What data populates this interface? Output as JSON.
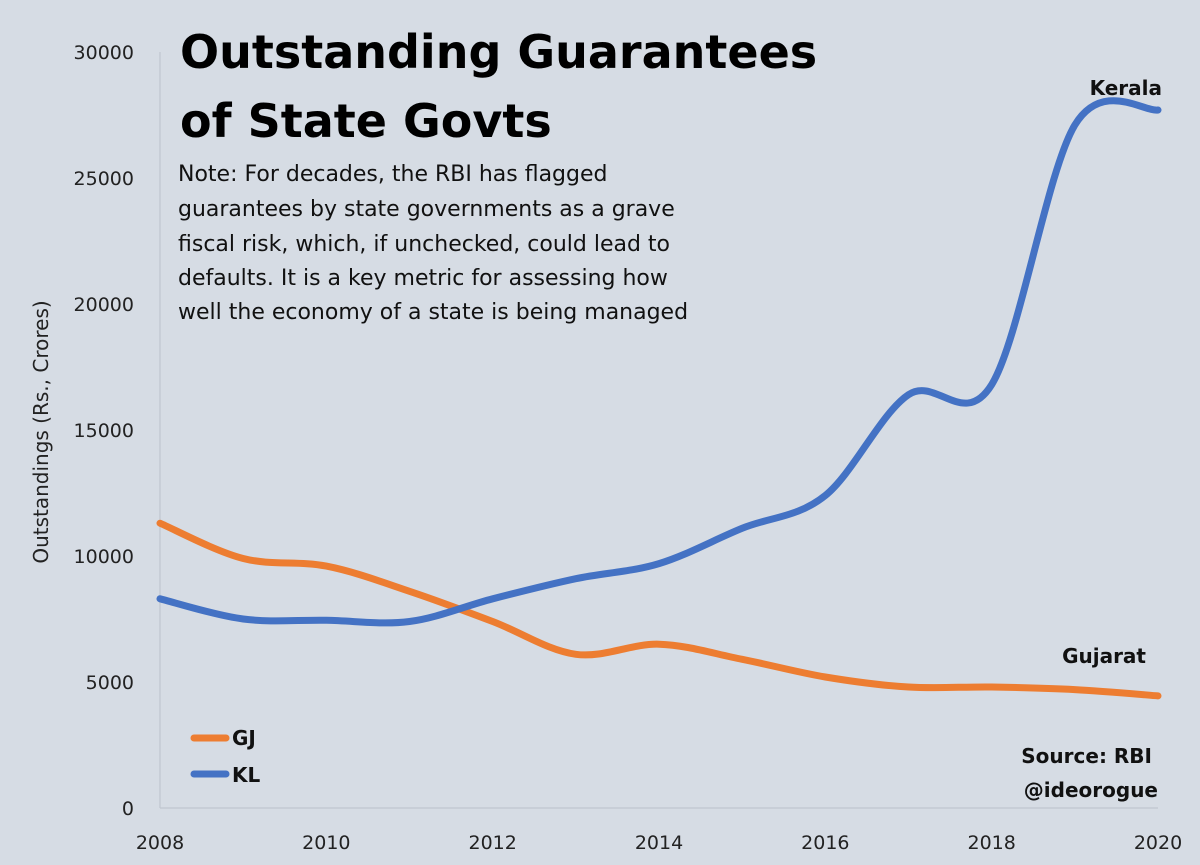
{
  "chart_data": {
    "type": "line",
    "title_lines": [
      "Outstanding Guarantees",
      "of State Govts"
    ],
    "note_lines": [
      "Note: For decades, the RBI has flagged",
      "guarantees by state governments as a grave",
      "fiscal risk, which, if unchecked, could lead to",
      "defaults. It is a key metric for assessing how",
      "well the economy of a state is being managed"
    ],
    "xlabel": "",
    "ylabel": "Outstandings (Rs., Crores)",
    "xlim": [
      2008,
      2020
    ],
    "ylim": [
      0,
      30000
    ],
    "x_ticks": [
      "2008",
      "2010",
      "2012",
      "2014",
      "2016",
      "2018",
      "2020"
    ],
    "y_ticks": [
      "0",
      "5000",
      "10000",
      "15000",
      "20000",
      "25000",
      "30000"
    ],
    "x": [
      2008,
      2009,
      2010,
      2011,
      2012,
      2013,
      2014,
      2015,
      2016,
      2017,
      2018,
      2019,
      2020
    ],
    "series": [
      {
        "name": "GJ",
        "end_label": "Gujarat",
        "color": "#ed7d31",
        "values": [
          11300,
          9900,
          9600,
          8600,
          7400,
          6100,
          6500,
          5900,
          5200,
          4800,
          4800,
          4700,
          4450
        ]
      },
      {
        "name": "KL",
        "end_label": "Kerala",
        "color": "#4472c4",
        "values": [
          8300,
          7500,
          7450,
          7400,
          8300,
          9100,
          9700,
          11100,
          12400,
          16400,
          16800,
          27100,
          27700
        ]
      }
    ],
    "legend": [
      "GJ",
      "KL"
    ],
    "legend_position": "bottom-left",
    "grid": false,
    "source_lines": [
      "Source: RBI",
      "@ideorogue"
    ],
    "background_color": "#d6dce4"
  }
}
